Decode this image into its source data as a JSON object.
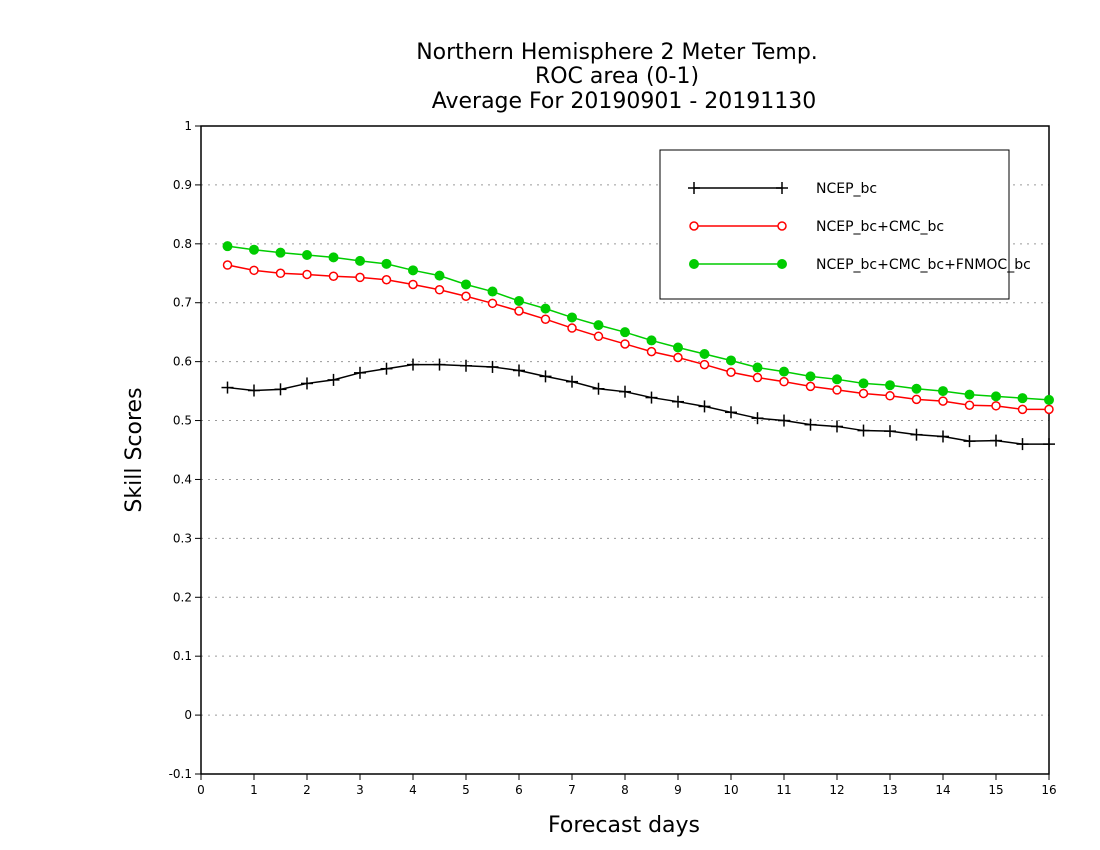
{
  "chart_data": {
    "type": "line",
    "title": "Northern Hemisphere 2 Meter Temp.",
    "subtitle": "ROC area (0-1)",
    "subtitle2": "Average For 20190901 - 20191130",
    "xlabel": "Forecast days",
    "ylabel": "Skill Scores",
    "xlim": [
      0,
      16
    ],
    "ylim": [
      -0.1,
      1
    ],
    "xticks": [
      "0",
      "1",
      "2",
      "3",
      "4",
      "5",
      "6",
      "7",
      "8",
      "9",
      "10",
      "11",
      "12",
      "13",
      "14",
      "15",
      "16"
    ],
    "yticks": [
      "-0.1",
      "0",
      "0.1",
      "0.2",
      "0.3",
      "0.4",
      "0.5",
      "0.6",
      "0.7",
      "0.8",
      "0.9",
      "1"
    ],
    "grid": true,
    "legend_position": "top-right",
    "x": [
      0.5,
      1,
      1.5,
      2,
      2.5,
      3,
      3.5,
      4,
      4.5,
      5,
      5.5,
      6,
      6.5,
      7,
      7.5,
      8,
      8.5,
      9,
      9.5,
      10,
      10.5,
      11,
      11.5,
      12,
      12.5,
      13,
      13.5,
      14,
      14.5,
      15,
      15.5,
      16
    ],
    "series": [
      {
        "name": "NCEP_bc",
        "color": "#000000",
        "marker": "plus",
        "values": [
          0.556,
          0.551,
          0.553,
          0.563,
          0.569,
          0.581,
          0.588,
          0.595,
          0.595,
          0.593,
          0.591,
          0.585,
          0.575,
          0.566,
          0.554,
          0.549,
          0.539,
          0.532,
          0.524,
          0.514,
          0.504,
          0.5,
          0.493,
          0.49,
          0.483,
          0.482,
          0.476,
          0.473,
          0.465,
          0.466,
          0.46,
          0.46
        ]
      },
      {
        "name": "NCEP_bc+CMC_bc",
        "color": "#ff0000",
        "marker": "open-circle",
        "values": [
          0.764,
          0.755,
          0.75,
          0.748,
          0.745,
          0.743,
          0.739,
          0.731,
          0.722,
          0.711,
          0.699,
          0.686,
          0.672,
          0.657,
          0.643,
          0.63,
          0.617,
          0.607,
          0.595,
          0.582,
          0.573,
          0.566,
          0.558,
          0.552,
          0.546,
          0.542,
          0.536,
          0.533,
          0.526,
          0.525,
          0.519,
          0.519
        ]
      },
      {
        "name": "NCEP_bc+CMC_bc+FNMOC_bc",
        "color": "#00cc00",
        "marker": "filled-circle",
        "values": [
          0.796,
          0.79,
          0.785,
          0.781,
          0.777,
          0.771,
          0.766,
          0.755,
          0.746,
          0.731,
          0.719,
          0.703,
          0.69,
          0.675,
          0.662,
          0.65,
          0.636,
          0.624,
          0.613,
          0.602,
          0.59,
          0.583,
          0.575,
          0.57,
          0.563,
          0.56,
          0.554,
          0.55,
          0.544,
          0.541,
          0.538,
          0.535
        ]
      }
    ]
  }
}
